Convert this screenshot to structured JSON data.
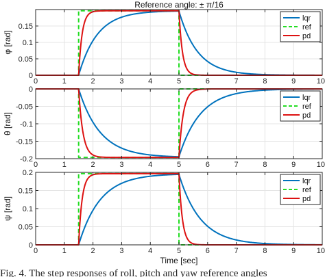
{
  "figure_title": "Reference angle: ± π/16",
  "xlabel": "Time [sec]",
  "caption_fragment": "Fig. 4. The step responses of roll, pitch and yaw reference angles",
  "colors": {
    "lqr": "#0072BD",
    "ref": "#22DD22",
    "pd": "#DD1111"
  },
  "chart_data": [
    {
      "type": "line",
      "name": "roll",
      "ylabel": "φ [rad]",
      "xlim": [
        0,
        10
      ],
      "ylim": [
        0,
        0.2
      ],
      "xticks": [
        "0",
        "1",
        "2",
        "3",
        "4",
        "5",
        "6",
        "7",
        "8",
        "9",
        "10"
      ],
      "yticks": [
        "0",
        "0.05",
        "0.1",
        "0.15"
      ],
      "ytick_values": [
        0,
        0.05,
        0.1,
        0.15
      ],
      "grid": true,
      "legend": {
        "placement": "top-right",
        "entries": [
          "lqr",
          "ref",
          "pd"
        ]
      },
      "amplitude": 0.19635,
      "step_on": 1.5,
      "step_off": 5.0,
      "series": [
        {
          "name": "lqr",
          "tau": 0.65,
          "style": "solid"
        },
        {
          "name": "ref",
          "tau": 0.06,
          "style": "dashed"
        },
        {
          "name": "pd",
          "tau": 0.12,
          "style": "solid"
        }
      ]
    },
    {
      "type": "line",
      "name": "pitch",
      "ylabel": "θ [rad]",
      "xlim": [
        0,
        10
      ],
      "ylim": [
        -0.2,
        0
      ],
      "xticks": [
        "0",
        "1",
        "2",
        "3",
        "4",
        "5",
        "6",
        "7",
        "8",
        "9",
        "10"
      ],
      "yticks": [
        "0",
        "-0.05",
        "-0.1",
        "-0.15",
        "-0.2"
      ],
      "ytick_values": [
        0,
        -0.05,
        -0.1,
        -0.15,
        -0.2
      ],
      "grid": true,
      "legend": {
        "placement": "top-right",
        "entries": [
          "lqr",
          "ref",
          "pd"
        ]
      },
      "amplitude": -0.19635,
      "step_on": 1.5,
      "step_off": 5.0,
      "series": [
        {
          "name": "lqr",
          "tau": 0.75,
          "style": "solid"
        },
        {
          "name": "ref",
          "tau": 0.06,
          "style": "dashed"
        },
        {
          "name": "pd",
          "tau": 0.15,
          "style": "solid"
        }
      ]
    },
    {
      "type": "line",
      "name": "yaw",
      "ylabel": "ψ [rad]",
      "xlim": [
        0,
        10
      ],
      "ylim": [
        0,
        0.2
      ],
      "xticks": [
        "0",
        "1",
        "2",
        "3",
        "4",
        "5",
        "6",
        "7",
        "8",
        "9",
        "10"
      ],
      "yticks": [
        "0",
        "0.05",
        "0.1",
        "0.15",
        "0.2"
      ],
      "ytick_values": [
        0,
        0.05,
        0.1,
        0.15,
        0.2
      ],
      "grid": true,
      "legend": {
        "placement": "top-right",
        "entries": [
          "lqr",
          "ref",
          "pd"
        ]
      },
      "amplitude": 0.19635,
      "step_on": 1.5,
      "step_off": 5.0,
      "series": [
        {
          "name": "lqr",
          "tau": 0.75,
          "style": "solid"
        },
        {
          "name": "ref",
          "tau": 0.06,
          "style": "dashed"
        },
        {
          "name": "pd",
          "tau": 0.12,
          "style": "solid"
        }
      ]
    }
  ]
}
